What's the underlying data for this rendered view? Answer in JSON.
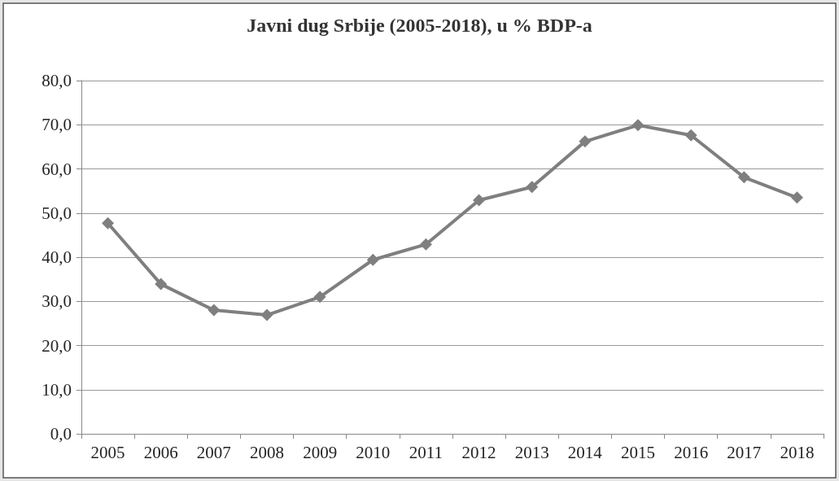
{
  "chart_data": {
    "type": "line",
    "title": "Javni dug Srbije (2005-2018), u % BDP-a",
    "categories": [
      "2005",
      "2006",
      "2007",
      "2008",
      "2009",
      "2010",
      "2011",
      "2012",
      "2013",
      "2014",
      "2015",
      "2016",
      "2017",
      "2018"
    ],
    "series": [
      {
        "color": "#7f7f7f",
        "values": [
          47.7,
          33.9,
          28.0,
          26.9,
          31.0,
          39.4,
          42.9,
          52.9,
          55.9,
          66.2,
          69.9,
          67.6,
          58.1,
          53.5
        ]
      }
    ],
    "ylim": [
      0,
      80
    ],
    "yticks": [
      {
        "value": 0,
        "label": "0,0"
      },
      {
        "value": 10,
        "label": "10,0"
      },
      {
        "value": 20,
        "label": "20,0"
      },
      {
        "value": 30,
        "label": "30,0"
      },
      {
        "value": 40,
        "label": "40,0"
      },
      {
        "value": 50,
        "label": "50,0"
      },
      {
        "value": 60,
        "label": "60,0"
      },
      {
        "value": 70,
        "label": "70,0"
      },
      {
        "value": 80,
        "label": "80,0"
      }
    ],
    "grid": "y",
    "marker": "diamond",
    "line_style": "solid"
  }
}
